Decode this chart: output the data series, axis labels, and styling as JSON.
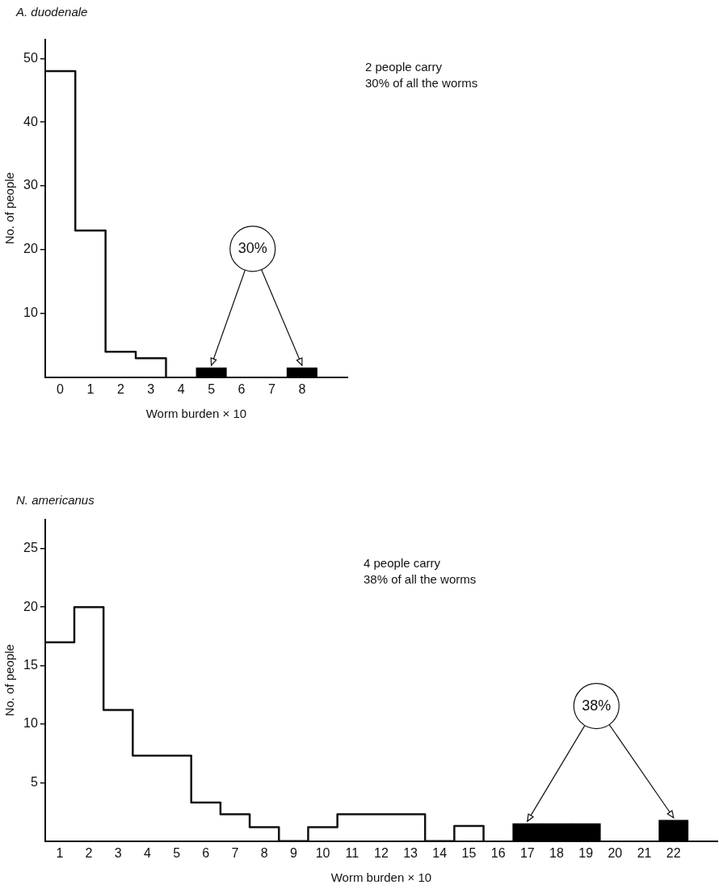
{
  "chart_data": [
    {
      "type": "step",
      "title": "A. duodenale",
      "xlabel": "Worm burden × 10",
      "ylabel": "No. of people",
      "series": [
        {
          "color": "#111111",
          "x": [
            -0.5,
            0.5,
            1.5,
            2.5,
            3.5
          ],
          "values": [
            48,
            23,
            4,
            3,
            0
          ]
        },
        {
          "type": "bar",
          "color": "#000000",
          "x": [
            5,
            8
          ],
          "values": [
            1.5,
            1.5
          ]
        }
      ],
      "xlim": [
        -0.5,
        9.5
      ],
      "xticks": [
        0,
        1,
        2,
        3,
        4,
        5,
        6,
        7,
        8
      ],
      "ylim": [
        0,
        53
      ],
      "yticks": [
        10,
        20,
        30,
        40,
        50
      ],
      "grid": false,
      "legend": false,
      "annotations": [
        "2 people carry\n30% of all the worms",
        {
          "text": "30%",
          "x": 5,
          "y": 1.5
        }
      ]
    },
    {
      "type": "step",
      "title": "N. americanus",
      "xlabel": "Worm burden × 10",
      "ylabel": "No. of people",
      "series": [
        {
          "color": "#111111",
          "x": [
            0.5,
            1.5,
            2.5,
            3.5,
            4.5,
            5.5,
            6.5,
            7.5,
            8.5,
            9.5,
            10.5,
            11.5,
            12.5,
            13.5,
            14.5,
            15.5
          ],
          "values": [
            17,
            20,
            11.2,
            7.3,
            7.3,
            3.3,
            2.3,
            1.2,
            0,
            1.2,
            2.3,
            2.3,
            2.3,
            0,
            1.3,
            0
          ]
        },
        {
          "type": "bar",
          "color": "#000000",
          "x": [
            17,
            18,
            19,
            22
          ],
          "values": [
            1.5,
            1.5,
            1.5,
            1.8
          ]
        }
      ],
      "xlim": [
        0.5,
        23.5
      ],
      "xticks": [
        1,
        2,
        3,
        4,
        5,
        6,
        7,
        8,
        9,
        10,
        11,
        12,
        13,
        14,
        15,
        16,
        17,
        18,
        19,
        20,
        21,
        22
      ],
      "ylim": [
        0,
        27.5
      ],
      "yticks": [
        5,
        10,
        15,
        20,
        25
      ],
      "grid": false,
      "legend": false,
      "annotations": [
        "4 people carry\n38% of all the worms",
        {
          "text": "38%",
          "x": 17,
          "y": 1.5
        }
      ]
    }
  ]
}
